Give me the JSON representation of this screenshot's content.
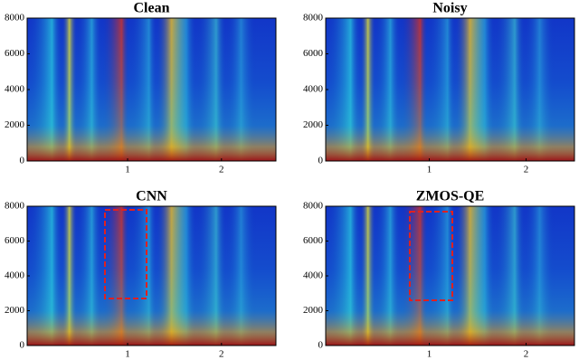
{
  "chart_data": [
    {
      "type": "spectrogram",
      "title": "Clean",
      "xlim": [
        -0.07,
        2.58
      ],
      "xticks": [
        1,
        2
      ],
      "ylim": [
        0,
        8000
      ],
      "yticks": [
        0,
        2000,
        4000,
        6000,
        8000
      ]
    },
    {
      "type": "spectrogram",
      "title": "Noisy",
      "xlim": [
        -0.07,
        2.5
      ],
      "xticks": [
        1,
        2
      ],
      "ylim": [
        0,
        8000
      ],
      "yticks": [
        0,
        2000,
        4000,
        6000,
        8000
      ]
    },
    {
      "type": "spectrogram",
      "title": "CNN",
      "xlim": [
        -0.07,
        2.58
      ],
      "xticks": [
        1,
        2
      ],
      "ylim": [
        0,
        8000
      ],
      "yticks": [
        0,
        2000,
        4000,
        6000,
        8000
      ]
    },
    {
      "type": "spectrogram",
      "title": "ZMOS-QE",
      "xlim": [
        -0.07,
        2.5
      ],
      "xticks": [
        1,
        2
      ],
      "ylim": [
        0,
        8000
      ],
      "yticks": [
        0,
        2000,
        4000,
        6000,
        8000
      ]
    }
  ]
}
